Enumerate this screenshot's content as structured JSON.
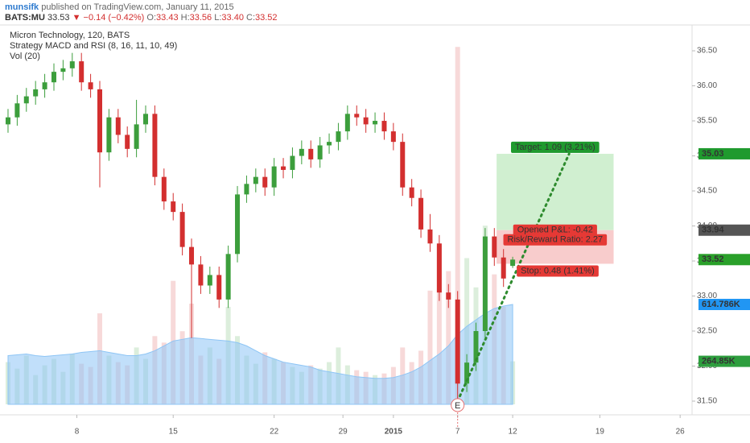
{
  "header": {
    "author": "munsifk",
    "published": "published on TradingView.com, January 11, 2015",
    "symbol": "BATS:MU",
    "last": "33.53",
    "arrow": "▼",
    "change": "−0.14 (−0.42%)",
    "ohlc": [
      {
        "key": "O:",
        "value": "33.43"
      },
      {
        "key": "H:",
        "value": "33.56"
      },
      {
        "key": "L:",
        "value": "33.40"
      },
      {
        "key": "C:",
        "value": "33.52"
      }
    ]
  },
  "chart_data": {
    "type": "candlestick",
    "legend": [
      "Micron Technology, 120, BATS",
      "Strategy MACD and RSI (8, 16, 11, 10, 49)",
      "Vol (20)"
    ],
    "up_color": "#3c9e3c",
    "down_color": "#d32f2f",
    "volume_ma_color": "#8ec5f5",
    "x": [
      0,
      2,
      4,
      6,
      8,
      10,
      12,
      14,
      16,
      18,
      20,
      22,
      24,
      26,
      28,
      30,
      32,
      34,
      36,
      38,
      40,
      42,
      44,
      46,
      48,
      50,
      52,
      54,
      56,
      58,
      60,
      62,
      64,
      66,
      68,
      70,
      72,
      74,
      76,
      78,
      80,
      82,
      84,
      86,
      88,
      90,
      92,
      94,
      96,
      98,
      100,
      102,
      104,
      106,
      108,
      110
    ],
    "open": [
      35.45,
      35.55,
      35.75,
      35.85,
      35.95,
      36.05,
      36.2,
      36.25,
      36.35,
      36.05,
      35.95,
      35.05,
      35.55,
      35.3,
      35.1,
      35.45,
      35.6,
      34.7,
      34.35,
      34.2,
      33.7,
      33.45,
      33.15,
      33.3,
      32.95,
      33.6,
      34.45,
      34.6,
      34.7,
      34.55,
      34.85,
      34.8,
      35.0,
      35.1,
      34.95,
      35.15,
      35.2,
      35.35,
      35.6,
      35.55,
      35.45,
      35.5,
      35.35,
      35.2,
      34.55,
      34.4,
      33.95,
      33.75,
      33.05,
      32.95,
      31.75,
      32.05,
      32.5,
      33.85,
      33.55,
      33.43
    ],
    "high": [
      35.67,
      35.87,
      35.97,
      36.07,
      36.17,
      36.32,
      36.37,
      36.47,
      36.47,
      36.17,
      36.07,
      35.67,
      35.67,
      35.42,
      35.8,
      35.72,
      35.72,
      34.82,
      34.47,
      34.32,
      33.82,
      33.57,
      33.42,
      33.42,
      33.72,
      34.57,
      34.72,
      34.82,
      34.82,
      34.97,
      34.97,
      35.12,
      35.22,
      35.22,
      35.27,
      35.32,
      35.47,
      35.72,
      35.72,
      35.67,
      35.62,
      35.62,
      35.47,
      35.32,
      34.67,
      34.52,
      34.17,
      33.87,
      33.17,
      33.07,
      32.17,
      32.62,
      33.97,
      33.97,
      33.67,
      33.56
    ],
    "low": [
      35.33,
      35.43,
      35.63,
      35.73,
      35.83,
      35.93,
      36.08,
      36.13,
      35.93,
      35.83,
      34.55,
      34.93,
      35.18,
      34.98,
      34.98,
      35.33,
      34.58,
      34.23,
      34.08,
      33.58,
      32.4,
      33.03,
      33.03,
      32.83,
      32.83,
      33.48,
      34.33,
      34.48,
      34.43,
      34.43,
      34.68,
      34.68,
      34.88,
      34.83,
      34.83,
      35.03,
      35.08,
      35.23,
      35.43,
      35.33,
      35.33,
      35.23,
      35.08,
      34.43,
      34.28,
      33.83,
      33.63,
      32.93,
      32.83,
      31.5,
      31.63,
      31.93,
      32.38,
      33.43,
      33.13,
      33.4
    ],
    "close": [
      35.55,
      35.75,
      35.85,
      35.95,
      36.05,
      36.2,
      36.25,
      36.35,
      36.05,
      35.95,
      35.05,
      35.55,
      35.3,
      35.1,
      35.45,
      35.6,
      34.7,
      34.35,
      34.2,
      33.7,
      33.45,
      33.15,
      33.3,
      32.95,
      33.6,
      34.45,
      34.6,
      34.7,
      34.55,
      34.85,
      34.8,
      35.0,
      35.1,
      34.95,
      35.15,
      35.2,
      35.35,
      35.6,
      35.55,
      35.45,
      35.5,
      35.35,
      35.2,
      34.55,
      34.4,
      33.95,
      33.75,
      33.05,
      32.95,
      31.75,
      32.05,
      32.5,
      33.85,
      33.55,
      33.25,
      33.52
    ],
    "volume": [
      260000,
      220000,
      300000,
      180000,
      240000,
      280000,
      200000,
      310000,
      250000,
      230000,
      560000,
      300000,
      260000,
      240000,
      350000,
      280000,
      420000,
      380000,
      760000,
      450000,
      620000,
      300000,
      350000,
      280000,
      600000,
      420000,
      300000,
      250000,
      320000,
      280000,
      260000,
      230000,
      200000,
      240000,
      220000,
      260000,
      350000,
      240000,
      210000,
      200000,
      180000,
      190000,
      230000,
      350000,
      260000,
      330000,
      700000,
      980000,
      820000,
      2200000,
      900000,
      720000,
      1100000,
      800000,
      600000,
      264850
    ],
    "volume_ma": [
      300000,
      305000,
      310000,
      300000,
      295000,
      300000,
      305000,
      310000,
      320000,
      325000,
      330000,
      320000,
      310000,
      300000,
      300000,
      310000,
      330000,
      360000,
      390000,
      400000,
      410000,
      405000,
      400000,
      395000,
      390000,
      380000,
      360000,
      330000,
      300000,
      280000,
      260000,
      250000,
      240000,
      230000,
      210000,
      200000,
      190000,
      180000,
      170000,
      165000,
      160000,
      160000,
      165000,
      180000,
      200000,
      230000,
      270000,
      310000,
      360000,
      430000,
      480000,
      520000,
      560000,
      590000,
      605000,
      614786
    ],
    "xlim": [
      -1.75,
      149.1
    ],
    "ylim": [
      31.3,
      36.88
    ],
    "volume_ylim": [
      0,
      2340000
    ],
    "xticks": [
      {
        "value": 15,
        "label": "8"
      },
      {
        "value": 36,
        "label": "15"
      },
      {
        "value": 58,
        "label": "22"
      },
      {
        "value": 73,
        "label": "29"
      },
      {
        "value": 84,
        "label": "2015"
      },
      {
        "value": 98,
        "label": "7"
      },
      {
        "value": 110,
        "label": "12"
      },
      {
        "value": 129,
        "label": "19"
      },
      {
        "value": 146.5,
        "label": "26"
      }
    ],
    "yticks": [
      {
        "value": 31.5,
        "label": "31.50"
      },
      {
        "value": 32,
        "label": "32.00"
      },
      {
        "value": 32.5,
        "label": "32.50"
      },
      {
        "value": 33,
        "label": "33.00"
      },
      {
        "value": 33.5,
        "label": "33.50"
      },
      {
        "value": 34,
        "label": "34.00"
      },
      {
        "value": 34.5,
        "label": "34.50"
      },
      {
        "value": 35,
        "label": "35.00"
      },
      {
        "value": 35.5,
        "label": "35.50"
      },
      {
        "value": 36,
        "label": "36.00"
      },
      {
        "value": 36.5,
        "label": "36.50"
      }
    ],
    "position": {
      "x_start": 106.5,
      "x_end": 132,
      "entry": 33.94,
      "target": 35.03,
      "stop": 33.46,
      "target_label": "Target: 1.09 (3.21%)",
      "pnl_label": "Opened P&L: -0.42",
      "rr_label": "Risk/Reward Ratio: 2.27",
      "stop_label": "Stop: 0.48 (1.41%)"
    },
    "projection": {
      "x": [
        98,
        122.3
      ],
      "y": [
        31.5,
        35.03
      ],
      "color": "#2e8b2e"
    },
    "event": {
      "x": 98,
      "label": "E"
    },
    "price_markers": [
      {
        "value": 35.03,
        "color": "#1f9a2e"
      },
      {
        "value": 33.94,
        "color": "#555555"
      },
      {
        "value": 33.52,
        "color": "#2aa02a"
      }
    ],
    "volume_markers": [
      {
        "value": 614786,
        "label": "614.786K",
        "color": "#2196f3"
      },
      {
        "value": 264850,
        "label": "264.85K",
        "color": "#2e9e3e"
      }
    ]
  }
}
